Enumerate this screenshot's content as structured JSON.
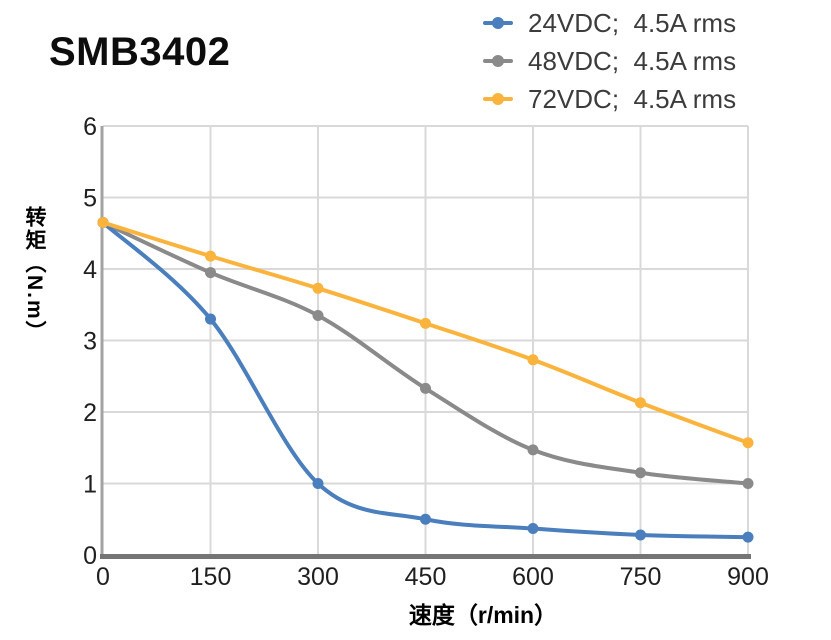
{
  "title": "SMB3402",
  "style": {
    "grid_color": "#d9d9d9",
    "x_axis_color": "#757575",
    "y_axis_color": "#a3a3a3",
    "tick_label_color": "#1f1f1f",
    "legend_text_color": "#3c3c3c"
  },
  "chart_data": {
    "type": "line",
    "title": "SMB3402",
    "xlabel": "速度（r/min）",
    "ylabel": "转矩（N.m）",
    "x": [
      0,
      150,
      300,
      450,
      600,
      750,
      900
    ],
    "x_tick_labels": [
      "0",
      "150",
      "300",
      "450",
      "600",
      "750",
      "900"
    ],
    "y_tick_labels": [
      "0",
      "1",
      "2",
      "3",
      "4",
      "5",
      "6"
    ],
    "xlim": [
      0,
      900
    ],
    "ylim": [
      0,
      6
    ],
    "grid": true,
    "line_style": "smooth",
    "marker": "circle",
    "legend_position": "top-right",
    "series": [
      {
        "name": "24VDC",
        "label": "24VDC;  4.5A rms",
        "color": "#4a7ebd",
        "values": [
          4.65,
          3.3,
          1.0,
          0.5,
          0.37,
          0.28,
          0.25
        ]
      },
      {
        "name": "48VDC",
        "label": "48VDC;  4.5A rms",
        "color": "#8a8a8a",
        "values": [
          4.65,
          3.95,
          3.35,
          2.33,
          1.47,
          1.15,
          1.0
        ]
      },
      {
        "name": "72VDC",
        "label": "72VDC;  4.5A rms",
        "color": "#fab43d",
        "values": [
          4.65,
          4.18,
          3.73,
          3.24,
          2.73,
          2.13,
          1.57
        ]
      }
    ]
  }
}
